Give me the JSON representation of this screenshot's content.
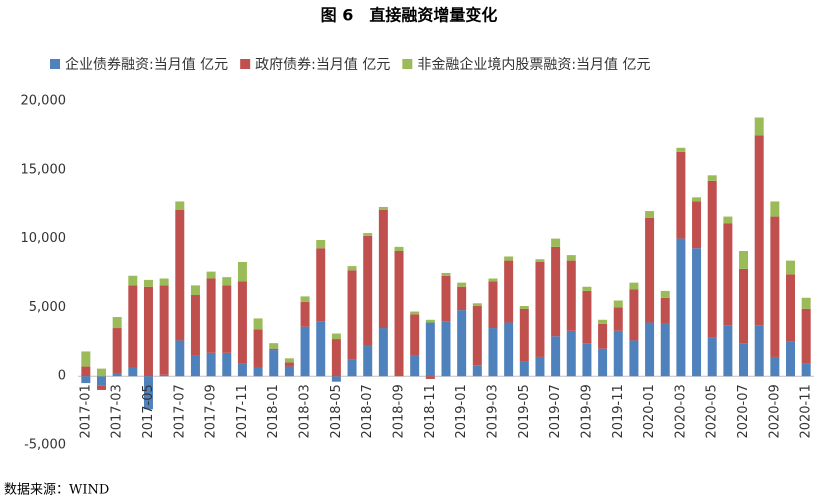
{
  "chart_data": {
    "type": "stacked_bar",
    "title": "图 6　直接融资增量变化",
    "categories": [
      "2017-01",
      null,
      "2017-03",
      null,
      "2017-05",
      null,
      "2017-07",
      null,
      "2017-09",
      null,
      "2017-11",
      null,
      "2018-01",
      null,
      "2018-03",
      null,
      "2018-05",
      null,
      "2018-07",
      null,
      "2018-09",
      null,
      "2018-11",
      null,
      "2019-01",
      null,
      "2019-03",
      null,
      "2019-05",
      null,
      "2019-07",
      null,
      "2019-09",
      null,
      "2019-11",
      null,
      "2020-01",
      null,
      "2020-03",
      null,
      "2020-05",
      null,
      "2020-07",
      null,
      "2020-09",
      null,
      "2020-11"
    ],
    "series": [
      {
        "name": "企业债券融资:当月值 亿元",
        "color": "#4f81bd",
        "values": [
          -500,
          -700,
          200,
          600,
          -2400,
          100,
          2600,
          1500,
          1700,
          1700,
          900,
          600,
          1900,
          700,
          3600,
          4000,
          -400,
          1200,
          2200,
          3500,
          0,
          1500,
          3900,
          4000,
          4800,
          800,
          3500,
          3900,
          1100,
          1400,
          2900,
          3300,
          2400,
          2000,
          3300,
          2600,
          3900,
          3800,
          10000,
          9300,
          2800,
          3700,
          2400,
          3700,
          1400,
          2500,
          900
        ]
      },
      {
        "name": "政府债券:当月值 亿元",
        "color": "#c0504d",
        "values": [
          700,
          -300,
          3300,
          6000,
          6500,
          6500,
          9500,
          4400,
          5400,
          4900,
          6000,
          2800,
          100,
          300,
          1800,
          5300,
          2700,
          6500,
          8000,
          8600,
          9100,
          3000,
          -200,
          3300,
          1700,
          4300,
          3400,
          4500,
          3800,
          6900,
          6500,
          5100,
          3800,
          1800,
          1700,
          3700,
          7600,
          1900,
          6300,
          3400,
          11400,
          7400,
          5400,
          13800,
          10200,
          4900,
          4000
        ]
      },
      {
        "name": "非金融企业境内股票融资:当月值 亿元",
        "color": "#9bbb59",
        "values": [
          1100,
          550,
          800,
          700,
          500,
          500,
          600,
          700,
          500,
          600,
          1400,
          800,
          400,
          300,
          400,
          600,
          400,
          300,
          200,
          200,
          300,
          200,
          200,
          200,
          300,
          200,
          200,
          300,
          200,
          200,
          600,
          400,
          300,
          300,
          500,
          500,
          500,
          500,
          300,
          300,
          400,
          500,
          1300,
          1300,
          1100,
          1000,
          800
        ]
      }
    ],
    "ylim": [
      -5000,
      20000
    ],
    "yticks": [
      {
        "value": -5000,
        "label": "-5,000"
      },
      0,
      {
        "value": 5000,
        "label": "5,000"
      },
      {
        "value": 10000,
        "label": "10,000"
      },
      {
        "value": 15000,
        "label": "15,000"
      },
      {
        "value": 20000,
        "label": "20,000"
      }
    ],
    "source": "数据来源：WIND"
  }
}
